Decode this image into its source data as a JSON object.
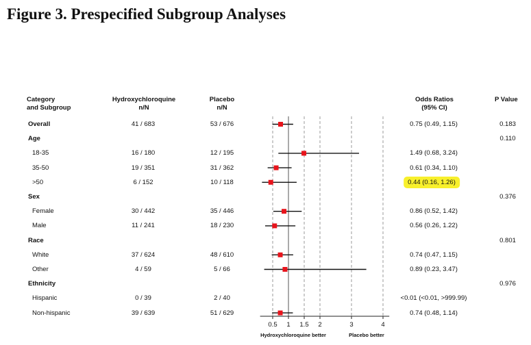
{
  "title": "Figure 3. Prespecified Subgroup Analyses",
  "headers": {
    "category_line1": "Category",
    "category_line2": "and Subgroup",
    "hcq_line1": "Hydroxychloroquine",
    "hcq_line2": "n/N",
    "placebo_line1": "Placebo",
    "placebo_line2": "n/N",
    "or_line1": "Odds Ratios",
    "or_line2": "(95% CI)",
    "p": "P Value"
  },
  "rows": [
    {
      "label": "Overall",
      "heading": true,
      "hcq": "41 / 683",
      "placebo": "53 / 676",
      "ci_text": "0.75 (0.49, 1.15)",
      "p": "0.183"
    },
    {
      "label": "Age",
      "heading": true,
      "p": "0.110"
    },
    {
      "label": "18-35",
      "heading": false,
      "hcq": "16 / 180",
      "placebo": "12 / 195",
      "ci_text": "1.49 (0.68, 3.24)"
    },
    {
      "label": "35-50",
      "heading": false,
      "hcq": "19 / 351",
      "placebo": "31 / 362",
      "ci_text": "0.61 (0.34, 1.10)"
    },
    {
      "label": ">50",
      "heading": false,
      "hcq": "6 / 152",
      "placebo": "10 / 118",
      "ci_text": "0.44 (0.16, 1.26)",
      "highlight": true
    },
    {
      "label": "Sex",
      "heading": true,
      "p": "0.376"
    },
    {
      "label": "Female",
      "heading": false,
      "hcq": "30 / 442",
      "placebo": "35 / 446",
      "ci_text": "0.86 (0.52, 1.42)"
    },
    {
      "label": "Male",
      "heading": false,
      "hcq": "11 / 241",
      "placebo": "18 / 230",
      "ci_text": "0.56 (0.26, 1.22)"
    },
    {
      "label": "Race",
      "heading": true,
      "p": "0.801"
    },
    {
      "label": "White",
      "heading": false,
      "hcq": "37 / 624",
      "placebo": "48 / 610",
      "ci_text": "0.74 (0.47, 1.15)"
    },
    {
      "label": "Other",
      "heading": false,
      "hcq": "4 / 59",
      "placebo": "5 / 66",
      "ci_text": "0.89 (0.23, 3.47)"
    },
    {
      "label": "Ethnicity",
      "heading": true,
      "p": "0.976"
    },
    {
      "label": "Hispanic",
      "heading": false,
      "hcq": "0 / 39",
      "placebo": "2 / 40",
      "ci_text": "<0.01 (<0.01, >999.99)"
    },
    {
      "label": "Non-hispanic",
      "heading": false,
      "hcq": "39 / 639",
      "placebo": "51 / 629",
      "ci_text": "0.74 (0.48, 1.14)"
    }
  ],
  "chart_data": {
    "type": "forest",
    "x_scale": "linear",
    "xlim": [
      0.1,
      4.2
    ],
    "reference_line": 1,
    "ticks": [
      0.5,
      1,
      1.5,
      2,
      3,
      4
    ],
    "tick_labels": [
      "0.5",
      "1",
      "1.5",
      "2",
      "3",
      "4"
    ],
    "dashed_gridlines": [
      0.5,
      1.5,
      2,
      3,
      4
    ],
    "left_direction_label": "Hydroxychloroquine better",
    "right_direction_label": "Placebo better",
    "marker_color": "#e8141c",
    "points": [
      {
        "label": "Overall",
        "or": 0.75,
        "lo": 0.49,
        "hi": 1.15
      },
      {
        "label": "18-35",
        "or": 1.49,
        "lo": 0.68,
        "hi": 3.24
      },
      {
        "label": "35-50",
        "or": 0.61,
        "lo": 0.34,
        "hi": 1.1
      },
      {
        "label": ">50",
        "or": 0.44,
        "lo": 0.16,
        "hi": 1.26
      },
      {
        "label": "Female",
        "or": 0.86,
        "lo": 0.52,
        "hi": 1.42
      },
      {
        "label": "Male",
        "or": 0.56,
        "lo": 0.26,
        "hi": 1.22
      },
      {
        "label": "White",
        "or": 0.74,
        "lo": 0.47,
        "hi": 1.15
      },
      {
        "label": "Other",
        "or": 0.89,
        "lo": 0.23,
        "hi": 3.47
      },
      {
        "label": "Non-hispanic",
        "or": 0.74,
        "lo": 0.48,
        "hi": 1.14
      }
    ]
  }
}
